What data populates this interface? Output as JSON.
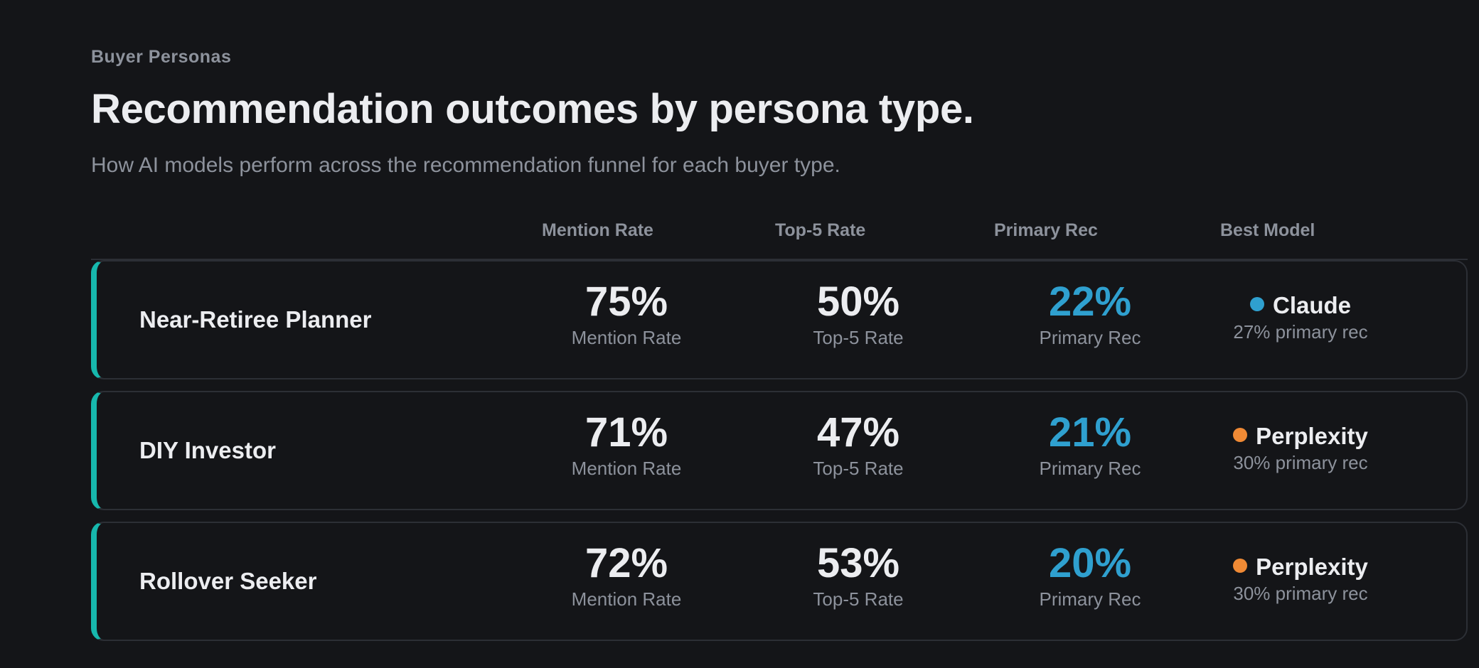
{
  "section": {
    "eyebrow": "Buyer Personas",
    "title": "Recommendation outcomes by persona type.",
    "subtitle": "How AI models perform across the recommendation funnel for each buyer type."
  },
  "columns": [
    "Mention Rate",
    "Top-5 Rate",
    "Primary Rec",
    "Best Model"
  ],
  "personas": [
    {
      "name": "Near-Retiree Planner",
      "mention_rate": "75%",
      "mention_label": "Mention Rate",
      "top5_rate": "50%",
      "top5_label": "Top-5 Rate",
      "primary_rec": "22%",
      "primary_label": "Primary Rec",
      "best_model": "Claude",
      "best_model_color": "#2fa0cf",
      "best_model_note": "27% primary rec"
    },
    {
      "name": "DIY Investor",
      "mention_rate": "71%",
      "mention_label": "Mention Rate",
      "top5_rate": "47%",
      "top5_label": "Top-5 Rate",
      "primary_rec": "21%",
      "primary_label": "Primary Rec",
      "best_model": "Perplexity",
      "best_model_color": "#f08a35",
      "best_model_note": "30% primary rec"
    },
    {
      "name": "Rollover Seeker",
      "mention_rate": "72%",
      "mention_label": "Mention Rate",
      "top5_rate": "53%",
      "top5_label": "Top-5 Rate",
      "primary_rec": "20%",
      "primary_label": "Primary Rec",
      "best_model": "Perplexity",
      "best_model_color": "#f08a35",
      "best_model_note": "30% primary rec"
    }
  ],
  "colors": {
    "background": "#141518",
    "row_accent": "#17b8ad",
    "primary_value": "#2fa0cf"
  }
}
